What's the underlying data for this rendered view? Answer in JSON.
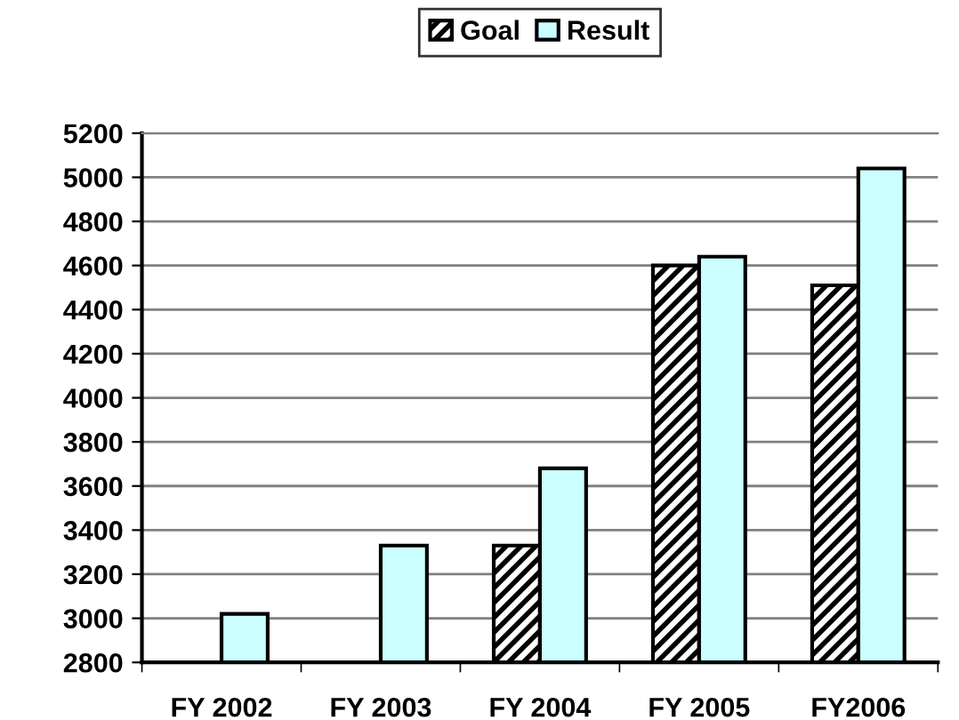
{
  "chart_data": {
    "type": "bar",
    "categories": [
      "FY 2002",
      "FY 2003",
      "FY 2004",
      "FY 2005",
      "FY2006"
    ],
    "series": [
      {
        "name": "Goal",
        "color": "#000000",
        "values": [
          null,
          null,
          3330,
          4600,
          4510
        ]
      },
      {
        "name": "Result",
        "color": "#ccffff",
        "values": [
          3020,
          3330,
          3680,
          4640,
          5040
        ]
      }
    ],
    "ylim": [
      2800,
      5200
    ],
    "yticks": [
      2800,
      3000,
      3200,
      3400,
      3600,
      3800,
      4000,
      4200,
      4400,
      4600,
      4800,
      5000,
      5200
    ],
    "grid": "y",
    "legend": "top"
  }
}
